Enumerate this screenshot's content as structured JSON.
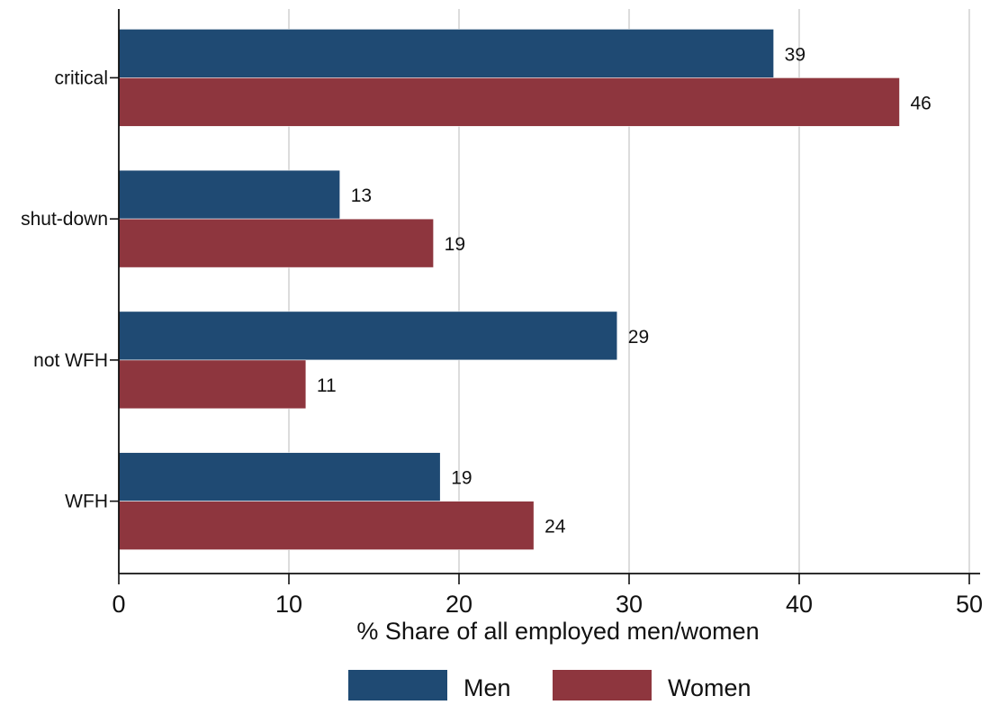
{
  "chart_data": {
    "type": "bar",
    "orientation": "horizontal",
    "categories": [
      "critical",
      "shut-down",
      "not WFH",
      "WFH"
    ],
    "series": [
      {
        "name": "Men",
        "values": [
          38.5,
          13.0,
          29.3,
          18.9
        ],
        "labels": [
          "39",
          "13",
          "29",
          "19"
        ],
        "color": "#1f4a73"
      },
      {
        "name": "Women",
        "values": [
          45.9,
          18.5,
          11.0,
          24.4
        ],
        "labels": [
          "46",
          "19",
          "11",
          "24"
        ],
        "color": "#8e363e"
      }
    ],
    "xlabel": "% Share of all employed men/women",
    "ylabel": "",
    "xlim": [
      0,
      50
    ],
    "xticks": [
      "0",
      "10",
      "20",
      "30",
      "40",
      "50"
    ],
    "grid": true,
    "legend_position": "bottom"
  }
}
